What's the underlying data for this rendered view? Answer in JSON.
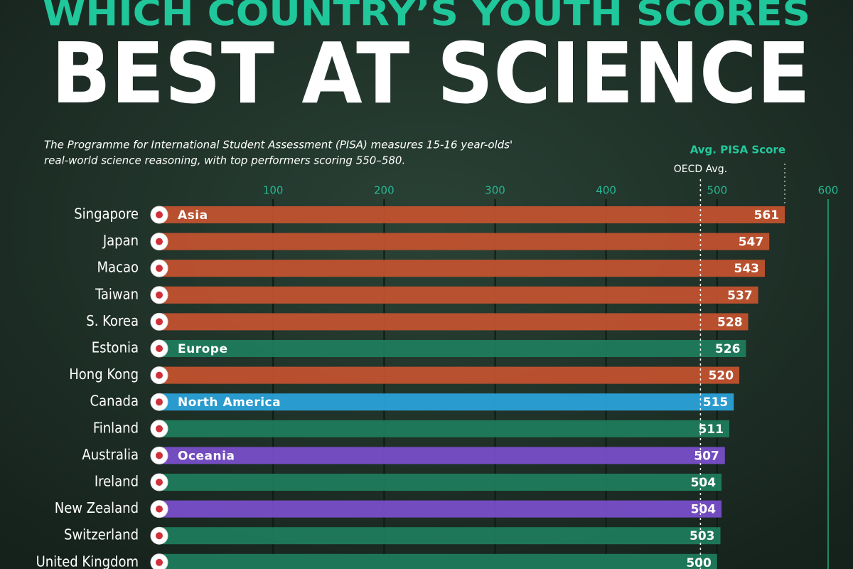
{
  "chart_data": {
    "type": "bar",
    "orientation": "horizontal",
    "supertitle": "WHICH COUNTRY’S YOUTH SCORES",
    "title": "BEST AT SCIENCE",
    "subtitle": [
      "The Programme for International Student Assessment (PISA) measures 15-16 year-olds'",
      "real-world science reasoning, with top performers scoring 550–580."
    ],
    "x_label": "Avg. PISA Score",
    "categories": [
      "Singapore",
      "Japan",
      "Macao",
      "Taiwan",
      "S. Korea",
      "Estonia",
      "Hong Kong",
      "Canada",
      "Finland",
      "Australia",
      "Ireland",
      "New Zealand",
      "Switzerland",
      "United Kingdom"
    ],
    "series": [
      {
        "name": "Asia",
        "color": "#c4532f",
        "values": [
          561,
          547,
          543,
          537,
          528,
          null,
          520,
          null,
          null,
          null,
          null,
          null,
          null,
          null
        ]
      },
      {
        "name": "Europe",
        "color": "#1e7d5d",
        "values": [
          null,
          null,
          null,
          null,
          null,
          526,
          null,
          null,
          511,
          null,
          504,
          null,
          503,
          500
        ]
      },
      {
        "name": "North America",
        "color": "#2ba4dc",
        "values": [
          null,
          null,
          null,
          null,
          null,
          null,
          null,
          515,
          null,
          null,
          null,
          null,
          null,
          null
        ]
      },
      {
        "name": "Oceania",
        "color": "#7a4fcc",
        "values": [
          null,
          null,
          null,
          null,
          null,
          null,
          null,
          null,
          null,
          507,
          null,
          504,
          null,
          null
        ]
      }
    ],
    "xlim": [
      0,
      600
    ],
    "xticks": [
      100,
      200,
      300,
      400,
      500,
      600
    ],
    "grid": true,
    "reference_line": {
      "label": "OECD Avg.",
      "value": 485
    }
  }
}
